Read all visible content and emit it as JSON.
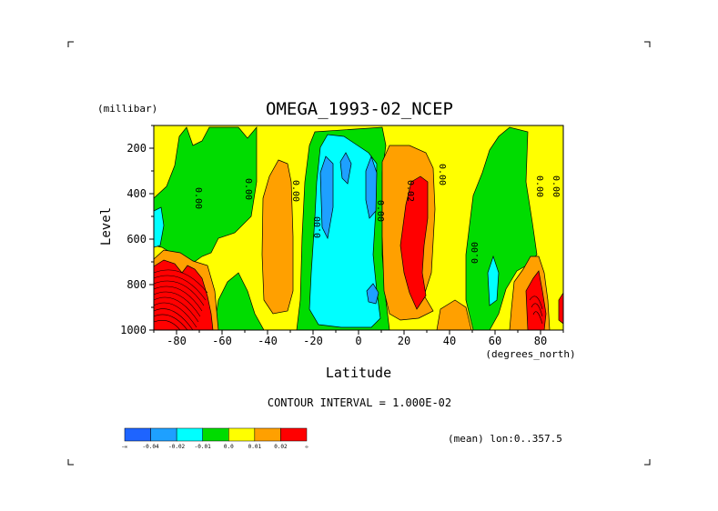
{
  "chart_data": {
    "type": "contour",
    "title": "OMEGA_1993-02_NCEP",
    "ylabel": "Level",
    "yunits": "(millibar)",
    "xlabel": "Latitude",
    "xunits": "(degrees_north)",
    "xlim": [
      -90,
      90
    ],
    "ylim": [
      1000,
      100
    ],
    "x_ticks": [
      -80,
      -60,
      -40,
      -20,
      0,
      20,
      40,
      60,
      80
    ],
    "y_ticks": [
      200,
      400,
      600,
      800,
      1000
    ],
    "contour_interval_text": "CONTOUR INTERVAL = 1.000E-02",
    "mean_text": "(mean) lon:0..357.5",
    "contour_labels": [
      "0.00",
      "0.00",
      "0.00",
      "0.00",
      "0.00",
      "0.02",
      "0.00",
      "0.00",
      "0.00",
      "0.00",
      "0.00"
    ],
    "colorbar": {
      "ticks": [
        "-0.04",
        "-0.02",
        "-0.01",
        "0.0",
        "0.01",
        "0.02"
      ],
      "bins": [
        {
          "lo": null,
          "hi": -0.04,
          "color": "#1e64ff"
        },
        {
          "lo": -0.04,
          "hi": -0.02,
          "color": "#1ea0ff"
        },
        {
          "lo": -0.02,
          "hi": -0.01,
          "color": "#00ffff"
        },
        {
          "lo": -0.01,
          "hi": 0.0,
          "color": "#00dc00"
        },
        {
          "lo": 0.0,
          "hi": 0.01,
          "color": "#ffff00"
        },
        {
          "lo": 0.01,
          "hi": 0.02,
          "color": "#ffa000"
        },
        {
          "lo": 0.02,
          "hi": null,
          "color": "#ff0000"
        }
      ]
    }
  }
}
